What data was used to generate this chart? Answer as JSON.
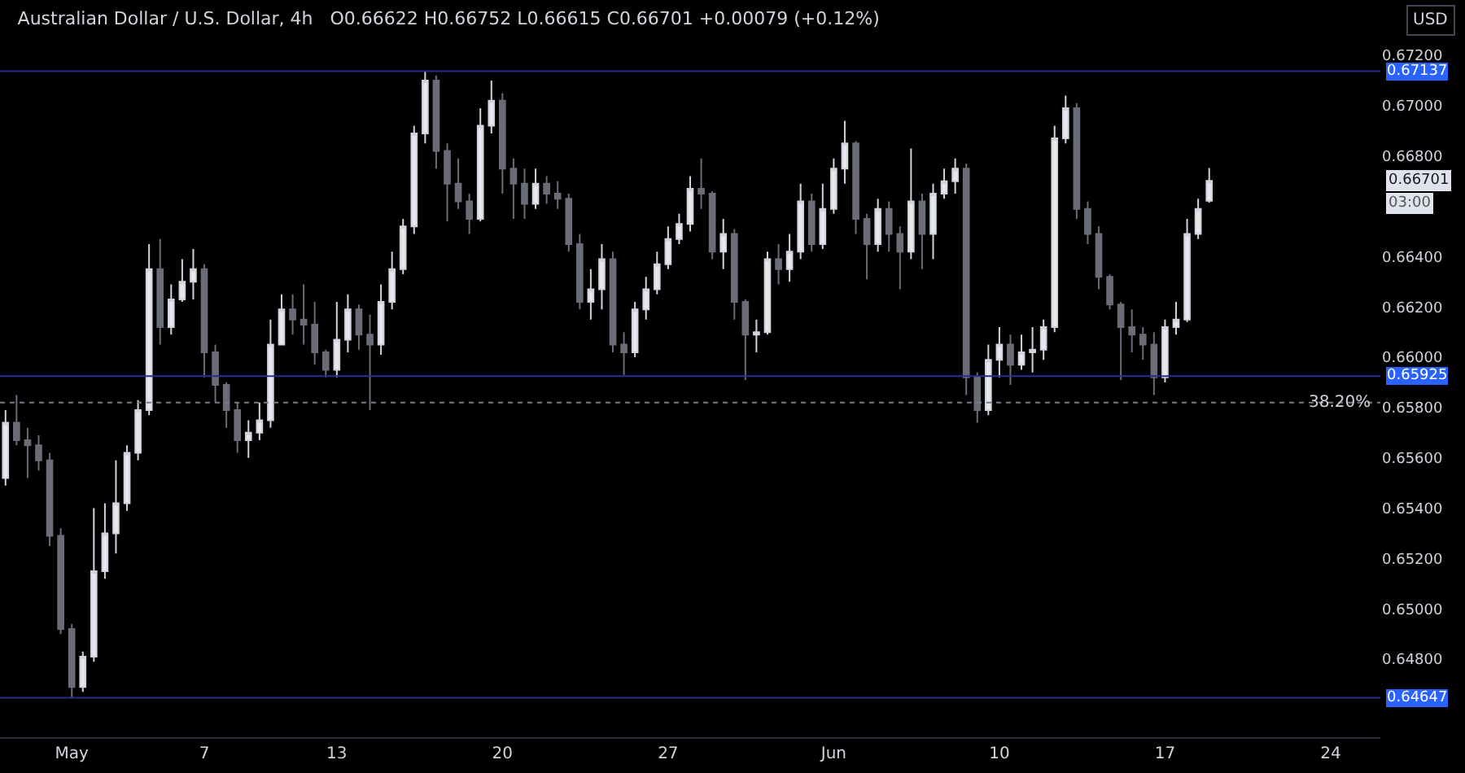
{
  "chart_data": {
    "type": "candlestick",
    "title": "Australian Dollar / U.S. Dollar, 4h",
    "subtitle": "O0.66622 H0.66752 L0.66615 C0.66701 +0.00079 (+0.12%)",
    "categories": [
      null,
      null,
      null,
      null,
      null,
      null,
      "May",
      null,
      null,
      null,
      null,
      null,
      null,
      null,
      null,
      null,
      null,
      null,
      "7",
      null,
      null,
      null,
      null,
      null,
      null,
      null,
      null,
      null,
      null,
      null,
      "13",
      null,
      null,
      null,
      null,
      null,
      null,
      null,
      null,
      null,
      null,
      null,
      null,
      null,
      null,
      "20",
      null,
      null,
      null,
      null,
      null,
      null,
      null,
      null,
      null,
      null,
      null,
      null,
      null,
      null,
      "27",
      null,
      null,
      null,
      null,
      null,
      null,
      null,
      null,
      null,
      null,
      null,
      null,
      null,
      null,
      "Jun",
      null,
      null,
      null,
      null,
      null,
      null,
      null,
      null,
      null,
      null,
      null,
      null,
      null,
      null,
      "10",
      null,
      null,
      null,
      null,
      null,
      null,
      null,
      null,
      null,
      null,
      null,
      null,
      null,
      null,
      "17",
      null,
      null,
      null,
      null,
      null,
      null,
      null,
      null,
      null,
      null,
      null,
      null,
      null,
      null,
      "24",
      null,
      null,
      null,
      null
    ],
    "ohlc": [
      [
        0.6552,
        0.6579,
        0.6549,
        0.6574
      ],
      [
        0.6574,
        0.6585,
        0.6565,
        0.6567
      ],
      [
        0.6567,
        0.6572,
        0.6552,
        0.6565
      ],
      [
        0.6565,
        0.6569,
        0.6555,
        0.6559
      ],
      [
        0.6559,
        0.6562,
        0.6525,
        0.6529
      ],
      [
        0.6529,
        0.6532,
        0.649,
        0.6492
      ],
      [
        0.6492,
        0.6494,
        0.64647,
        0.6469
      ],
      [
        0.6469,
        0.6483,
        0.6467,
        0.6481
      ],
      [
        0.6481,
        0.654,
        0.6479,
        0.6515
      ],
      [
        0.6515,
        0.6542,
        0.6512,
        0.653
      ],
      [
        0.653,
        0.6559,
        0.6522,
        0.6542
      ],
      [
        0.6542,
        0.6565,
        0.6539,
        0.6562
      ],
      [
        0.6562,
        0.6583,
        0.6559,
        0.6579
      ],
      [
        0.6579,
        0.6645,
        0.6577,
        0.6635
      ],
      [
        0.6635,
        0.6647,
        0.6605,
        0.6612
      ],
      [
        0.6612,
        0.6629,
        0.6609,
        0.6623
      ],
      [
        0.6623,
        0.6639,
        0.6622,
        0.663
      ],
      [
        0.663,
        0.6643,
        0.6623,
        0.6635
      ],
      [
        0.6635,
        0.6637,
        0.6592,
        0.6602
      ],
      [
        0.6602,
        0.6605,
        0.6582,
        0.6589
      ],
      [
        0.6589,
        0.659,
        0.6572,
        0.6579
      ],
      [
        0.6579,
        0.6582,
        0.6562,
        0.6567
      ],
      [
        0.6567,
        0.6575,
        0.656,
        0.657
      ],
      [
        0.657,
        0.6582,
        0.6567,
        0.6575
      ],
      [
        0.6575,
        0.6615,
        0.6572,
        0.6605
      ],
      [
        0.6605,
        0.6625,
        0.6605,
        0.6619
      ],
      [
        0.6619,
        0.6625,
        0.6609,
        0.6615
      ],
      [
        0.6615,
        0.6629,
        0.6605,
        0.6613
      ],
      [
        0.6613,
        0.6622,
        0.6597,
        0.6602
      ],
      [
        0.6602,
        0.6603,
        0.6592,
        0.6595
      ],
      [
        0.6595,
        0.6622,
        0.6592,
        0.6607
      ],
      [
        0.6607,
        0.6625,
        0.6602,
        0.6619
      ],
      [
        0.6619,
        0.6621,
        0.6603,
        0.6609
      ],
      [
        0.6609,
        0.6617,
        0.6579,
        0.6605
      ],
      [
        0.6605,
        0.6629,
        0.6601,
        0.6622
      ],
      [
        0.6622,
        0.6642,
        0.6619,
        0.6635
      ],
      [
        0.6635,
        0.6655,
        0.6633,
        0.6652
      ],
      [
        0.6652,
        0.6692,
        0.6649,
        0.6689
      ],
      [
        0.6689,
        0.67137,
        0.6685,
        0.671
      ],
      [
        0.671,
        0.6712,
        0.6675,
        0.6682
      ],
      [
        0.6682,
        0.6685,
        0.6654,
        0.6669
      ],
      [
        0.6669,
        0.6679,
        0.6659,
        0.6662
      ],
      [
        0.6662,
        0.6665,
        0.6649,
        0.6655
      ],
      [
        0.6655,
        0.6699,
        0.6654,
        0.6692
      ],
      [
        0.6692,
        0.671,
        0.6689,
        0.6702
      ],
      [
        0.6702,
        0.6705,
        0.6665,
        0.6675
      ],
      [
        0.6675,
        0.6679,
        0.6655,
        0.6669
      ],
      [
        0.6669,
        0.6675,
        0.6655,
        0.6661
      ],
      [
        0.6661,
        0.6675,
        0.6659,
        0.6669
      ],
      [
        0.6669,
        0.6672,
        0.6661,
        0.6665
      ],
      [
        0.6665,
        0.667,
        0.6659,
        0.6663
      ],
      [
        0.6663,
        0.6665,
        0.6642,
        0.6645
      ],
      [
        0.6645,
        0.6649,
        0.6619,
        0.6622
      ],
      [
        0.6622,
        0.6635,
        0.6615,
        0.6627
      ],
      [
        0.6627,
        0.6645,
        0.6619,
        0.6639
      ],
      [
        0.6639,
        0.6642,
        0.6602,
        0.6605
      ],
      [
        0.6605,
        0.661,
        0.6593,
        0.6602
      ],
      [
        0.6602,
        0.6622,
        0.66,
        0.6619
      ],
      [
        0.6619,
        0.6632,
        0.6615,
        0.6627
      ],
      [
        0.6627,
        0.6642,
        0.6625,
        0.6637
      ],
      [
        0.6637,
        0.6652,
        0.6635,
        0.6647
      ],
      [
        0.6647,
        0.6657,
        0.6645,
        0.6653
      ],
      [
        0.6653,
        0.6672,
        0.665,
        0.6667
      ],
      [
        0.6667,
        0.6679,
        0.6659,
        0.6665
      ],
      [
        0.6665,
        0.6666,
        0.6639,
        0.6642
      ],
      [
        0.6642,
        0.6655,
        0.6635,
        0.6649
      ],
      [
        0.6649,
        0.6651,
        0.6615,
        0.6622
      ],
      [
        0.6622,
        0.6623,
        0.6591,
        0.6609
      ],
      [
        0.6609,
        0.6615,
        0.6602,
        0.661
      ],
      [
        0.661,
        0.6642,
        0.6609,
        0.6639
      ],
      [
        0.6639,
        0.6645,
        0.6629,
        0.6635
      ],
      [
        0.6635,
        0.6649,
        0.663,
        0.6642
      ],
      [
        0.6642,
        0.6669,
        0.6639,
        0.6662
      ],
      [
        0.6662,
        0.6665,
        0.6642,
        0.6645
      ],
      [
        0.6645,
        0.6669,
        0.6643,
        0.6659
      ],
      [
        0.6659,
        0.6679,
        0.6657,
        0.6675
      ],
      [
        0.6675,
        0.6694,
        0.6669,
        0.6685
      ],
      [
        0.6685,
        0.6686,
        0.6649,
        0.6655
      ],
      [
        0.6655,
        0.6657,
        0.6631,
        0.6645
      ],
      [
        0.6645,
        0.6663,
        0.6642,
        0.6659
      ],
      [
        0.6659,
        0.6662,
        0.6642,
        0.6649
      ],
      [
        0.6649,
        0.6652,
        0.6627,
        0.6642
      ],
      [
        0.6642,
        0.6683,
        0.6639,
        0.6662
      ],
      [
        0.6662,
        0.6665,
        0.6635,
        0.6649
      ],
      [
        0.6649,
        0.6669,
        0.6639,
        0.6665
      ],
      [
        0.6665,
        0.6675,
        0.6663,
        0.667
      ],
      [
        0.667,
        0.6679,
        0.6665,
        0.6675
      ],
      [
        0.6675,
        0.6677,
        0.6585,
        0.6592
      ],
      [
        0.6592,
        0.6594,
        0.6574,
        0.6579
      ],
      [
        0.6579,
        0.6605,
        0.6577,
        0.6599
      ],
      [
        0.6599,
        0.6612,
        0.6592,
        0.6605
      ],
      [
        0.6605,
        0.6609,
        0.6589,
        0.6597
      ],
      [
        0.6597,
        0.6609,
        0.6595,
        0.6602
      ],
      [
        0.6602,
        0.6612,
        0.6594,
        0.6603
      ],
      [
        0.6603,
        0.6615,
        0.6599,
        0.6612
      ],
      [
        0.6612,
        0.6692,
        0.661,
        0.6687
      ],
      [
        0.6687,
        0.6704,
        0.6685,
        0.6699
      ],
      [
        0.6699,
        0.6701,
        0.6655,
        0.6659
      ],
      [
        0.6659,
        0.6662,
        0.6645,
        0.6649
      ],
      [
        0.6649,
        0.6652,
        0.6627,
        0.6632
      ],
      [
        0.6632,
        0.6633,
        0.6619,
        0.6621
      ],
      [
        0.6621,
        0.6622,
        0.6591,
        0.6612
      ],
      [
        0.6612,
        0.6619,
        0.6602,
        0.6609
      ],
      [
        0.6609,
        0.6612,
        0.6599,
        0.6605
      ],
      [
        0.6605,
        0.661,
        0.6585,
        0.6592
      ],
      [
        0.6592,
        0.6615,
        0.659,
        0.6612
      ],
      [
        0.6612,
        0.6622,
        0.6609,
        0.6615
      ],
      [
        0.6615,
        0.6655,
        0.6614,
        0.6649
      ],
      [
        0.6649,
        0.6663,
        0.6647,
        0.6659
      ],
      [
        0.66622,
        0.66752,
        0.66615,
        0.66701
      ],
      null,
      null,
      null,
      null,
      null,
      null,
      null,
      null,
      null,
      null,
      null,
      null,
      null,
      null,
      null
    ],
    "ylim": [
      0.6449,
      0.6742
    ],
    "yticks": [
      {
        "value": 0.648,
        "label": "0.64800"
      },
      {
        "value": 0.65,
        "label": "0.65000"
      },
      {
        "value": 0.652,
        "label": "0.65200"
      },
      {
        "value": 0.654,
        "label": "0.65400"
      },
      {
        "value": 0.656,
        "label": "0.65600"
      },
      {
        "value": 0.658,
        "label": "0.65800"
      },
      {
        "value": 0.66,
        "label": "0.66000"
      },
      {
        "value": 0.662,
        "label": "0.66200"
      },
      {
        "value": 0.664,
        "label": "0.66400"
      },
      {
        "value": 0.668,
        "label": "0.66800"
      },
      {
        "value": 0.67,
        "label": "0.67000"
      },
      {
        "value": 0.672,
        "label": "0.67200"
      }
    ],
    "ref_lines": [
      {
        "axis": "y",
        "value": 0.67137,
        "label": "0.67137",
        "color": "#2a2f8f"
      },
      {
        "axis": "y",
        "value": 0.65925,
        "label": "0.65925",
        "color": "#2a2f8f"
      },
      {
        "axis": "y",
        "value": 0.64647,
        "label": "0.64647",
        "color": "#2a2f8f"
      },
      {
        "axis": "y",
        "value": 0.6582,
        "color": "#787b86",
        "line_style": "dotted"
      }
    ],
    "annotations": [
      "0.66701",
      "03:00",
      "USD",
      {
        "text": "38.20%",
        "y": 0.6582
      }
    ]
  }
}
